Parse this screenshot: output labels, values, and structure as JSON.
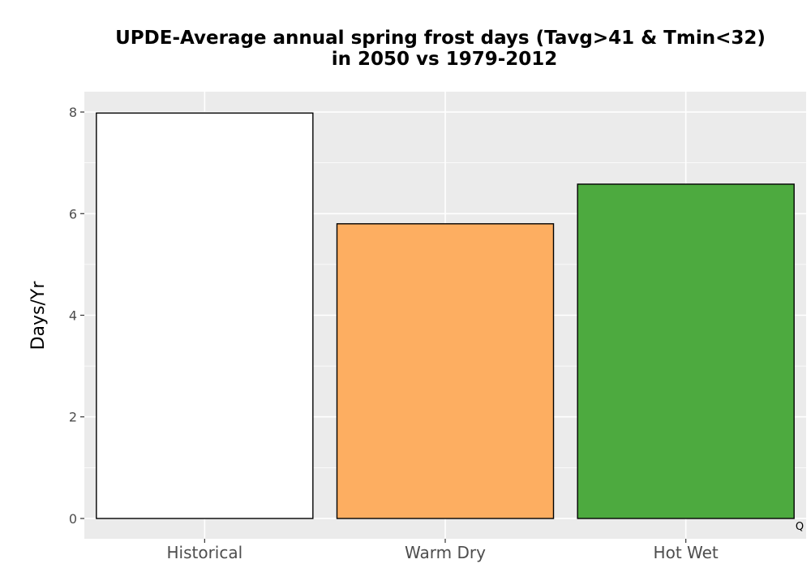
{
  "chart_data": {
    "type": "bar",
    "title_line1": "UPDE-Average annual spring frost days (Tavg>41 & Tmin<32)",
    "title_line2": "in 2050 vs 1979-2012",
    "xlabel": "",
    "ylabel": "Days/Yr",
    "categories": [
      "Historical",
      "Warm Dry",
      "Hot Wet"
    ],
    "values": [
      7.98,
      5.8,
      6.58
    ],
    "colors": [
      "#ffffff",
      "#fdae61",
      "#4daa3f"
    ],
    "ylim": [
      -0.4,
      8.4
    ],
    "yticks": [
      0,
      2,
      4,
      6,
      8
    ],
    "ytick_labels": [
      "0",
      "2",
      "4",
      "6",
      "8"
    ],
    "grid": true,
    "panel_background": "#ebebeb",
    "corner_label": "Q"
  }
}
